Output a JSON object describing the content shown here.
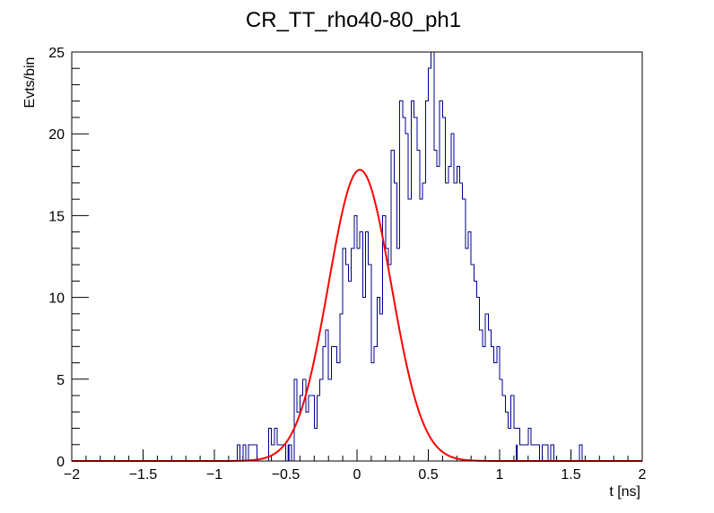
{
  "chart_data": {
    "type": "histogram",
    "title": "CR_TT_rho40-80_ph1",
    "xlabel": "t [ns]",
    "ylabel": "Evts/bin",
    "xlim": [
      -2,
      2
    ],
    "ylim": [
      0,
      25
    ],
    "x_ticks": [
      -2,
      -1.5,
      -1,
      -0.5,
      0,
      0.5,
      1,
      1.5,
      2
    ],
    "x_tick_labels": [
      "−2",
      "−1.5",
      "−1",
      "−0.5",
      "0",
      "0.5",
      "1",
      "1.5",
      "2"
    ],
    "y_ticks": [
      0,
      5,
      10,
      15,
      20,
      25
    ],
    "y_tick_labels": [
      "0",
      "5",
      "10",
      "15",
      "20",
      "25"
    ],
    "grid": false,
    "legend": false,
    "series": [
      {
        "kind": "step-histogram",
        "color": "#00008b",
        "bin_start": -1.0,
        "bin_width": 0.02,
        "counts": [
          0,
          0,
          0,
          0,
          0,
          0,
          0,
          0,
          1,
          0,
          1,
          0,
          1,
          1,
          1,
          0,
          0,
          0,
          0,
          2,
          1,
          2,
          1,
          1,
          1,
          0,
          1,
          0,
          5,
          3,
          4,
          5,
          3,
          4,
          4,
          2,
          4,
          5,
          7,
          8,
          5,
          7,
          7,
          6,
          9,
          13,
          12,
          11,
          13,
          15,
          13,
          14,
          10,
          14,
          12,
          6,
          7,
          10,
          9,
          15,
          13,
          12,
          19,
          17,
          13,
          22,
          21,
          20,
          16,
          22,
          21,
          19,
          16,
          17,
          22,
          24,
          25,
          19,
          18,
          22,
          21,
          17,
          18,
          20,
          17,
          18,
          17,
          16,
          13,
          14,
          12,
          11,
          10,
          8,
          7,
          9,
          8,
          7,
          6,
          7,
          5,
          4,
          3,
          2,
          4,
          2,
          2,
          1,
          1,
          1,
          2,
          1,
          1,
          1,
          0,
          1,
          1,
          0,
          1,
          0,
          0,
          0,
          0,
          0,
          0,
          0,
          0,
          0,
          1,
          0
        ],
        "extra_spikes": [
          {
            "x": 1.12,
            "value": 1
          },
          {
            "x": -0.48,
            "value": 1
          }
        ]
      },
      {
        "kind": "gaussian-fit",
        "color": "#ff0000",
        "amplitude": 17.8,
        "mean": 0.02,
        "sigma": 0.22
      }
    ]
  }
}
